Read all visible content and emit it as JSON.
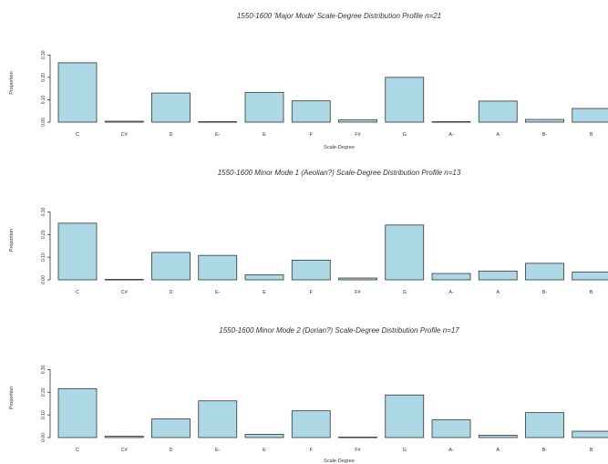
{
  "chart_data": [
    {
      "type": "bar",
      "title": "1550-1600 'Major Mode' Scale-Degree Distribution Profile n=21",
      "xlabel": "Scale-Degree",
      "ylabel": "Proportion",
      "ylim": [
        0,
        0.35
      ],
      "yticks": [
        "0.00",
        "0.10",
        "0.20",
        "0.30"
      ],
      "categories": [
        "C",
        "C#",
        "D",
        "E-",
        "E",
        "F",
        "F#",
        "G",
        "A-",
        "A",
        "B-",
        "B"
      ],
      "values": [
        0.265,
        0.004,
        0.13,
        0.002,
        0.133,
        0.095,
        0.01,
        0.2,
        0.002,
        0.094,
        0.012,
        0.061
      ],
      "bar_color": "#add8e6"
    },
    {
      "type": "bar",
      "title": "1550-1600 Minor Mode 1 (Aeolian?) Scale-Degree Distribution Profile n=13",
      "xlabel": "",
      "ylabel": "Proportion",
      "ylim": [
        0,
        0.35
      ],
      "yticks": [
        "0.00",
        "0.10",
        "0.20",
        "0.30"
      ],
      "categories": [
        "C",
        "C#",
        "D",
        "E-",
        "E",
        "F",
        "F#",
        "G",
        "A-",
        "A",
        "B-",
        "B"
      ],
      "values": [
        0.25,
        0.002,
        0.121,
        0.108,
        0.022,
        0.087,
        0.008,
        0.242,
        0.028,
        0.039,
        0.073,
        0.035
      ],
      "bar_color": "#add8e6"
    },
    {
      "type": "bar",
      "title": "1550-1600 Minor Mode 2 (Dorian?) Scale-Degree Distribution Profile n=17",
      "xlabel": "Scale-Degree",
      "ylabel": "Proportion",
      "ylim": [
        0,
        0.35
      ],
      "yticks": [
        "0.00",
        "0.10",
        "0.20",
        "0.30"
      ],
      "categories": [
        "C",
        "C#",
        "D",
        "E-",
        "E",
        "F",
        "F#",
        "G",
        "A-",
        "A",
        "B-",
        "B"
      ],
      "values": [
        0.216,
        0.006,
        0.082,
        0.162,
        0.014,
        0.118,
        0.002,
        0.188,
        0.078,
        0.01,
        0.11,
        0.028
      ],
      "bar_color": "#add8e6"
    }
  ]
}
